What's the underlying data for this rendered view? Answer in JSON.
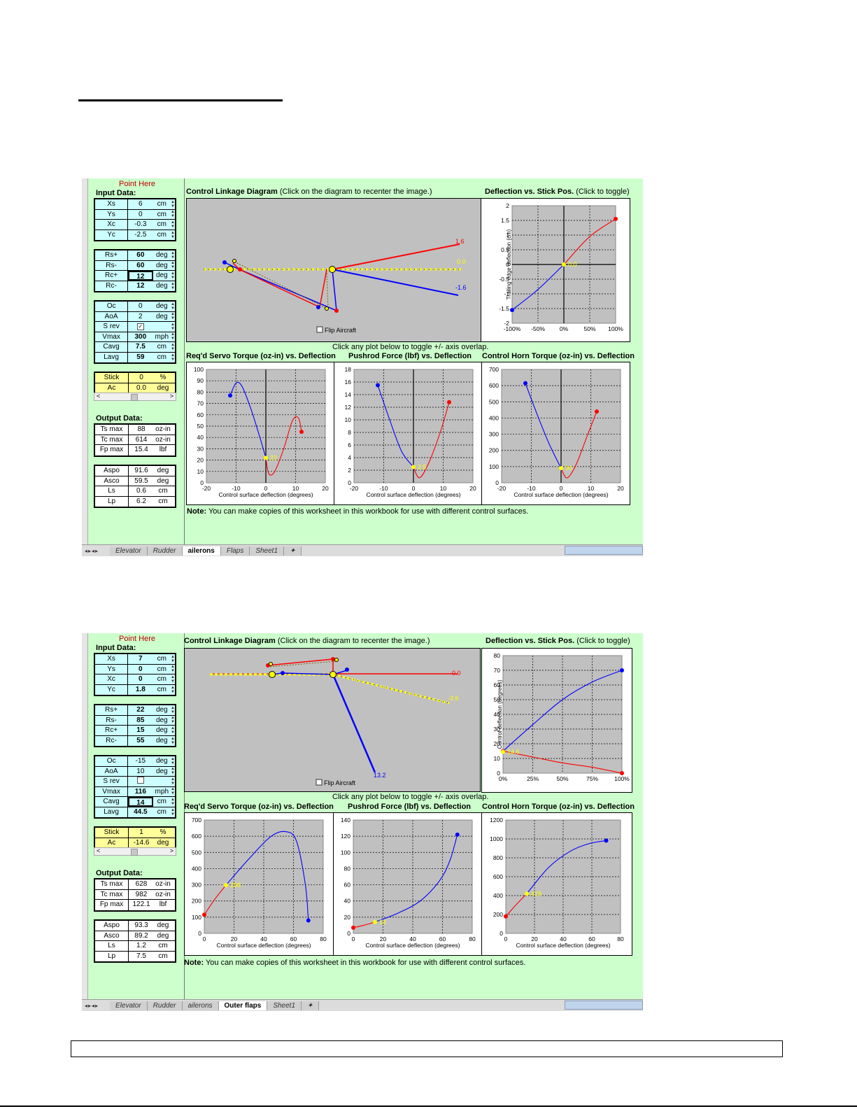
{
  "screens": [
    {
      "point_here": "Point Here",
      "input_label": "Input Data:",
      "group1": [
        {
          "name": "Xs",
          "value": "6",
          "unit": "cm"
        },
        {
          "name": "Ys",
          "value": "0",
          "unit": "cm"
        },
        {
          "name": "Xc",
          "value": "-0.3",
          "unit": "cm"
        },
        {
          "name": "Yc",
          "value": "-2.5",
          "unit": "cm"
        }
      ],
      "group2": [
        {
          "name": "Rs+",
          "value": "60",
          "unit": "deg"
        },
        {
          "name": "Rs-",
          "value": "60",
          "unit": "deg"
        },
        {
          "name": "Rc+",
          "value": "12",
          "unit": "deg"
        },
        {
          "name": "Rc-",
          "value": "12",
          "unit": "deg"
        }
      ],
      "group3": [
        {
          "name": "Oc",
          "value": "0",
          "unit": "deg"
        },
        {
          "name": "AoA",
          "value": "2",
          "unit": "deg"
        },
        {
          "name": "S rev",
          "value": "✓",
          "unit": ""
        },
        {
          "name": "Vmax",
          "value": "300",
          "unit": "mph"
        },
        {
          "name": "Cavg",
          "value": "7.5",
          "unit": "cm"
        },
        {
          "name": "Lavg",
          "value": "59",
          "unit": "cm"
        }
      ],
      "stick": [
        {
          "name": "Stick",
          "value": "0",
          "unit": "%"
        },
        {
          "name": "Ac",
          "value": "0.0",
          "unit": "deg"
        }
      ],
      "output_label": "Output Data:",
      "outputs": [
        {
          "name": "Ts max",
          "value": "88",
          "unit": "oz-in"
        },
        {
          "name": "Tc max",
          "value": "614",
          "unit": "oz-in"
        },
        {
          "name": "Fp max",
          "value": "15.4",
          "unit": "lbf"
        }
      ],
      "geometry": [
        {
          "name": "Aspo",
          "value": "91.6",
          "unit": "deg"
        },
        {
          "name": "Asco",
          "value": "59.5",
          "unit": "deg"
        },
        {
          "name": "Ls",
          "value": "0.6",
          "unit": "cm"
        },
        {
          "name": "Lp",
          "value": "6.2",
          "unit": "cm"
        }
      ],
      "linkage_title_bold": "Control Linkage Diagram",
      "linkage_title_rest": " (Click on the diagram to recenter the image.)",
      "deflection_title_bold": "Deflection vs. Stick Pos.",
      "deflection_title_rest": " (Click to toggle)",
      "click_note": "Click any plot below to toggle +/- axis overlap.",
      "torque_title": "Req'd Servo Torque (oz-in) vs. Deflection",
      "pushrod_title": "Pushrod Force (lbf) vs. Deflection",
      "horn_title": "Control Horn Torque (oz-in) vs. Deflection",
      "note_bold": "Note:",
      "note_rest": " You can make copies of this worksheet in this workbook for use with different control surfaces.",
      "flip_label": "Flip Aircraft",
      "tabs": [
        "Elevator",
        "Rudder",
        "ailerons",
        "Flaps",
        "Sheet1"
      ],
      "active_tab": "ailerons",
      "linkage_labels": [
        "1.6",
        "0.0",
        "-1.6"
      ]
    },
    {
      "point_here": "Point Here",
      "input_label": "Input Data:",
      "group1": [
        {
          "name": "Xs",
          "value": "7",
          "unit": "cm"
        },
        {
          "name": "Ys",
          "value": "0",
          "unit": "cm"
        },
        {
          "name": "Xc",
          "value": "0",
          "unit": "cm"
        },
        {
          "name": "Yc",
          "value": "1.8",
          "unit": "cm"
        }
      ],
      "group2": [
        {
          "name": "Rs+",
          "value": "22",
          "unit": "deg"
        },
        {
          "name": "Rs-",
          "value": "85",
          "unit": "deg"
        },
        {
          "name": "Rc+",
          "value": "15",
          "unit": "deg"
        },
        {
          "name": "Rc-",
          "value": "55",
          "unit": "deg"
        }
      ],
      "group3": [
        {
          "name": "Oc",
          "value": "-15",
          "unit": "deg"
        },
        {
          "name": "AoA",
          "value": "10",
          "unit": "deg"
        },
        {
          "name": "S rev",
          "value": "",
          "unit": ""
        },
        {
          "name": "Vmax",
          "value": "116",
          "unit": "mph"
        },
        {
          "name": "Cavg",
          "value": "14",
          "unit": "cm"
        },
        {
          "name": "Lavg",
          "value": "44.5",
          "unit": "cm"
        }
      ],
      "stick": [
        {
          "name": "Stick",
          "value": "1",
          "unit": "%"
        },
        {
          "name": "Ac",
          "value": "-14.6",
          "unit": "deg"
        }
      ],
      "output_label": "Output Data:",
      "outputs": [
        {
          "name": "Ts max",
          "value": "628",
          "unit": "oz-in"
        },
        {
          "name": "Tc max",
          "value": "982",
          "unit": "oz-in"
        },
        {
          "name": "Fp max",
          "value": "122.1",
          "unit": "lbf"
        }
      ],
      "geometry": [
        {
          "name": "Aspo",
          "value": "93.3",
          "unit": "deg"
        },
        {
          "name": "Asco",
          "value": "89.2",
          "unit": "deg"
        },
        {
          "name": "Ls",
          "value": "1.2",
          "unit": "cm"
        },
        {
          "name": "Lp",
          "value": "7.5",
          "unit": "cm"
        }
      ],
      "linkage_title_bold": "Control Linkage Diagram",
      "linkage_title_rest": " (Click on the diagram to recenter the image.)",
      "deflection_title_bold": "Deflection vs. Stick Pos.",
      "deflection_title_rest": " (Click to toggle)",
      "click_note": "Click any plot below to toggle +/- axis overlap.",
      "torque_title": "Req'd Servo Torque (oz-in) vs. Deflection",
      "pushrod_title": "Pushrod Force (lbf) vs. Deflection",
      "horn_title": "Control Horn Torque (oz-in) vs. Deflection",
      "note_bold": "Note:",
      "note_rest": " You can make copies of this worksheet in this workbook for use with different control surfaces.",
      "flip_label": "Flip Aircraft",
      "tabs": [
        "Elevator",
        "Rudder",
        "ailerons",
        "Outer flaps",
        "Sheet1"
      ],
      "active_tab": "Outer flaps",
      "linkage_labels": [
        "0.0",
        "-3.6",
        "13.2"
      ]
    }
  ],
  "colors": {
    "plus": "#ff0000",
    "minus": "#0000ff",
    "current": "#ffff00",
    "chart_bg": "#c0c0c0",
    "panel_bg": "#ccffcc"
  },
  "chart_data": [
    {
      "type": "line",
      "title": "Deflection vs. Stick Pos.",
      "xlabel": "",
      "ylabel": "Trailing edge deflection (cm)",
      "x_ticks": [
        "-100%",
        "-50%",
        "0%",
        "50%",
        "100%"
      ],
      "y_ticks": [
        "2",
        "1.5",
        "1",
        "0.5",
        "0",
        "-0.5",
        "-1",
        "-1.5",
        "-2"
      ],
      "xlim": [
        -100,
        100
      ],
      "ylim": [
        -2,
        2
      ],
      "series": [
        {
          "color": "minus",
          "x": [
            -100,
            -50,
            0
          ],
          "y": [
            -1.55,
            -0.85,
            0
          ]
        },
        {
          "color": "plus",
          "x": [
            0,
            50,
            100
          ],
          "y": [
            0,
            0.95,
            1.55
          ]
        }
      ],
      "current": {
        "x": 0,
        "y": 0,
        "label": "0.0"
      }
    },
    {
      "type": "line",
      "title": "Req'd Servo Torque (oz-in) vs. Deflection",
      "xlabel": "Control surface deflection (degrees)",
      "x_ticks": [
        "-20",
        "-10",
        "0",
        "10",
        "20"
      ],
      "y_ticks": [
        "100",
        "90",
        "80",
        "70",
        "60",
        "50",
        "40",
        "30",
        "20",
        "10",
        "0"
      ],
      "xlim": [
        -20,
        20
      ],
      "ylim": [
        0,
        100
      ],
      "series": [
        {
          "color": "minus",
          "x": [
            -12,
            -10,
            -8,
            -5,
            -2,
            0
          ],
          "y": [
            77,
            88,
            85,
            65,
            40,
            22
          ]
        },
        {
          "color": "plus",
          "x": [
            0,
            1,
            3,
            6,
            9,
            11,
            12
          ],
          "y": [
            22,
            8,
            10,
            30,
            55,
            57,
            45
          ]
        }
      ],
      "current": {
        "x": 0,
        "y": 22,
        "label": "22"
      }
    },
    {
      "type": "line",
      "title": "Pushrod Force (lbf) vs. Deflection",
      "xlabel": "Control surface deflection (degrees)",
      "x_ticks": [
        "-20",
        "-10",
        "0",
        "10",
        "20"
      ],
      "y_ticks": [
        "18",
        "16",
        "14",
        "12",
        "10",
        "8",
        "6",
        "4",
        "2",
        "0"
      ],
      "xlim": [
        -20,
        20
      ],
      "ylim": [
        0,
        18
      ],
      "series": [
        {
          "color": "minus",
          "x": [
            -12,
            -8,
            -4,
            0
          ],
          "y": [
            15.5,
            10,
            5,
            2.5
          ]
        },
        {
          "color": "plus",
          "x": [
            0,
            2,
            5,
            9,
            12
          ],
          "y": [
            2.5,
            0.8,
            3,
            8,
            12.8
          ]
        }
      ],
      "current": {
        "x": 0,
        "y": 2.5,
        "label": "2.5"
      }
    },
    {
      "type": "line",
      "title": "Control Horn Torque (oz-in) vs. Deflection",
      "xlabel": "Control surface deflection (degrees)",
      "x_ticks": [
        "-20",
        "-10",
        "0",
        "10",
        "20"
      ],
      "y_ticks": [
        "700",
        "600",
        "500",
        "400",
        "300",
        "200",
        "100",
        "0"
      ],
      "xlim": [
        -20,
        20
      ],
      "ylim": [
        0,
        700
      ],
      "series": [
        {
          "color": "minus",
          "x": [
            -12,
            -8,
            -4,
            0
          ],
          "y": [
            615,
            420,
            240,
            90
          ]
        },
        {
          "color": "plus",
          "x": [
            0,
            2,
            5,
            9,
            12
          ],
          "y": [
            90,
            30,
            110,
            300,
            440
          ]
        }
      ],
      "current": {
        "x": 0,
        "y": 90,
        "label": "90"
      }
    },
    {
      "type": "line",
      "title": "Deflection vs. Stick Pos.",
      "xlabel": "",
      "ylabel": "Control deflection (degrees)",
      "x_ticks": [
        "0%",
        "25%",
        "50%",
        "75%",
        "100%"
      ],
      "y_ticks": [
        "80",
        "70",
        "60",
        "50",
        "40",
        "30",
        "20",
        "10",
        "0"
      ],
      "xlim": [
        0,
        100
      ],
      "ylim": [
        0,
        80
      ],
      "series": [
        {
          "color": "minus",
          "x": [
            0,
            25,
            50,
            75,
            100
          ],
          "y": [
            15,
            33,
            50,
            62,
            70
          ]
        },
        {
          "color": "plus",
          "x": [
            0,
            25,
            50,
            75,
            100
          ],
          "y": [
            15,
            11,
            7,
            4,
            0
          ]
        }
      ],
      "current": {
        "x": 0,
        "y": 14.6,
        "label": "14.6"
      }
    },
    {
      "type": "line",
      "title": "Req'd Servo Torque (oz-in) vs. Deflection",
      "xlabel": "Control surface deflection (degrees)",
      "x_ticks": [
        "0",
        "20",
        "40",
        "60",
        "80"
      ],
      "y_ticks": [
        "700",
        "600",
        "500",
        "400",
        "300",
        "200",
        "100",
        "0"
      ],
      "xlim": [
        0,
        80
      ],
      "ylim": [
        0,
        700
      ],
      "series": [
        {
          "color": "plus",
          "x": [
            0,
            7,
            14.6
          ],
          "y": [
            115,
            210,
            298
          ]
        },
        {
          "color": "minus",
          "x": [
            14.6,
            30,
            45,
            55,
            62,
            68,
            70
          ],
          "y": [
            298,
            460,
            600,
            628,
            570,
            300,
            80
          ]
        }
      ],
      "current": {
        "x": 14.6,
        "y": 298,
        "label": "298"
      }
    },
    {
      "type": "line",
      "title": "Pushrod Force (lbf) vs. Deflection",
      "xlabel": "Control surface deflection (degrees)",
      "x_ticks": [
        "0",
        "20",
        "40",
        "60",
        "80"
      ],
      "y_ticks": [
        "140",
        "120",
        "100",
        "80",
        "60",
        "40",
        "20",
        "0"
      ],
      "xlim": [
        0,
        80
      ],
      "ylim": [
        0,
        140
      ],
      "series": [
        {
          "color": "plus",
          "x": [
            0,
            7,
            14.6
          ],
          "y": [
            7,
            10,
            14
          ]
        },
        {
          "color": "minus",
          "x": [
            14.6,
            30,
            45,
            58,
            65,
            70
          ],
          "y": [
            14,
            25,
            40,
            65,
            90,
            122
          ]
        }
      ],
      "current": {
        "x": 14.6,
        "y": 14,
        "label": "14"
      }
    },
    {
      "type": "line",
      "title": "Control Horn Torque (oz-in) vs. Deflection",
      "xlabel": "Control surface deflection (degrees)",
      "x_ticks": [
        "0",
        "20",
        "40",
        "60",
        "80"
      ],
      "y_ticks": [
        "1200",
        "1000",
        "800",
        "600",
        "400",
        "200",
        "0"
      ],
      "xlim": [
        0,
        80
      ],
      "ylim": [
        0,
        1200
      ],
      "series": [
        {
          "color": "plus",
          "x": [
            0,
            7,
            14.6
          ],
          "y": [
            180,
            300,
            420
          ]
        },
        {
          "color": "minus",
          "x": [
            14.6,
            30,
            45,
            58,
            70
          ],
          "y": [
            420,
            700,
            870,
            950,
            982
          ]
        }
      ],
      "current": {
        "x": 14.6,
        "y": 420,
        "label": "419"
      }
    }
  ]
}
